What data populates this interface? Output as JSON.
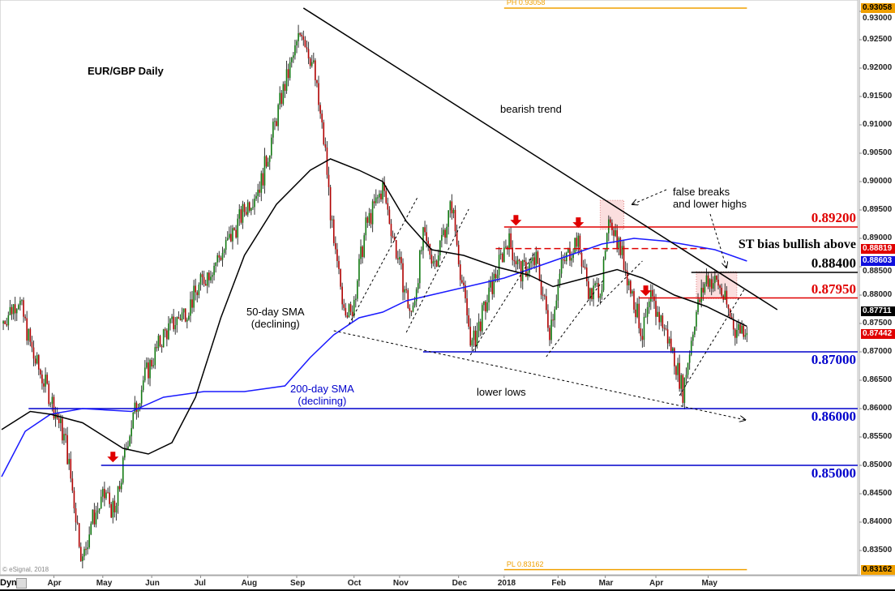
{
  "chart_data": {
    "type": "candlestick",
    "title": "EUR/GBP Daily",
    "ylim": [
      0.83,
      0.932
    ],
    "y_ticks": [
      "0.93000",
      "0.92500",
      "0.92000",
      "0.91500",
      "0.91000",
      "0.90500",
      "0.90000",
      "0.89500",
      "0.89000",
      "0.88500",
      "0.88000",
      "0.87500",
      "0.87000",
      "0.86500",
      "0.86000",
      "0.85500",
      "0.85000",
      "0.84500",
      "0.84000",
      "0.83500"
    ],
    "x_ticks": [
      {
        "label": "Apr",
        "day": 31
      },
      {
        "label": "May",
        "day": 60
      },
      {
        "label": "Jun",
        "day": 89
      },
      {
        "label": "Jul",
        "day": 118
      },
      {
        "label": "Aug",
        "day": 146
      },
      {
        "label": "Sep",
        "day": 175
      },
      {
        "label": "Oct",
        "day": 209
      },
      {
        "label": "Nov",
        "day": 236
      },
      {
        "label": "Dec",
        "day": 271
      },
      {
        "label": "2018",
        "day": 298
      },
      {
        "label": "Feb",
        "day": 330
      },
      {
        "label": "Mar",
        "day": 358
      },
      {
        "label": "Apr",
        "day": 388
      },
      {
        "label": "May",
        "day": 419
      }
    ],
    "x_corner_label": "Dyn",
    "close_keypoints": [
      [
        0,
        0.875
      ],
      [
        10,
        0.8795
      ],
      [
        19,
        0.869
      ],
      [
        29,
        0.862
      ],
      [
        38,
        0.854
      ],
      [
        48,
        0.833
      ],
      [
        53,
        0.84
      ],
      [
        62,
        0.845
      ],
      [
        67,
        0.841
      ],
      [
        75,
        0.855
      ],
      [
        84,
        0.865
      ],
      [
        96,
        0.873
      ],
      [
        111,
        0.878
      ],
      [
        120,
        0.883
      ],
      [
        132,
        0.888
      ],
      [
        144,
        0.895
      ],
      [
        154,
        0.9
      ],
      [
        166,
        0.915
      ],
      [
        178,
        0.927
      ],
      [
        185,
        0.92
      ],
      [
        192,
        0.905
      ],
      [
        197,
        0.888
      ],
      [
        202,
        0.88
      ],
      [
        207,
        0.876
      ],
      [
        216,
        0.892
      ],
      [
        226,
        0.899
      ],
      [
        236,
        0.885
      ],
      [
        243,
        0.876
      ],
      [
        250,
        0.89
      ],
      [
        257,
        0.886
      ],
      [
        267,
        0.896
      ],
      [
        274,
        0.88
      ],
      [
        279,
        0.871
      ],
      [
        288,
        0.879
      ],
      [
        300,
        0.89
      ],
      [
        308,
        0.884
      ],
      [
        317,
        0.886
      ],
      [
        325,
        0.874
      ],
      [
        332,
        0.885
      ],
      [
        341,
        0.89
      ],
      [
        349,
        0.88
      ],
      [
        356,
        0.882
      ],
      [
        361,
        0.894
      ],
      [
        368,
        0.887
      ],
      [
        375,
        0.879
      ],
      [
        380,
        0.873
      ],
      [
        385,
        0.879
      ],
      [
        392,
        0.875
      ],
      [
        399,
        0.869
      ],
      [
        404,
        0.863
      ],
      [
        411,
        0.876
      ],
      [
        418,
        0.883
      ],
      [
        425,
        0.882
      ],
      [
        435,
        0.874
      ],
      [
        442,
        0.8744
      ]
    ],
    "sma50": {
      "name": "50-day SMA",
      "points": [
        [
          0,
          0.8563
        ],
        [
          17,
          0.8595
        ],
        [
          29,
          0.859
        ],
        [
          48,
          0.8575
        ],
        [
          72,
          0.853
        ],
        [
          87,
          0.852
        ],
        [
          101,
          0.854
        ],
        [
          115,
          0.862
        ],
        [
          130,
          0.876
        ],
        [
          144,
          0.887
        ],
        [
          163,
          0.896
        ],
        [
          183,
          0.902
        ],
        [
          195,
          0.904
        ],
        [
          212,
          0.902
        ],
        [
          226,
          0.9
        ],
        [
          240,
          0.893
        ],
        [
          255,
          0.888
        ],
        [
          274,
          0.887
        ],
        [
          293,
          0.885
        ],
        [
          313,
          0.8835
        ],
        [
          327,
          0.8815
        ],
        [
          346,
          0.883
        ],
        [
          365,
          0.8845
        ],
        [
          380,
          0.883
        ],
        [
          399,
          0.88
        ],
        [
          418,
          0.878
        ],
        [
          442,
          0.8745
        ]
      ]
    },
    "sma200": {
      "name": "200-day SMA",
      "points": [
        [
          0,
          0.848
        ],
        [
          14,
          0.856
        ],
        [
          29,
          0.859
        ],
        [
          48,
          0.86
        ],
        [
          77,
          0.8595
        ],
        [
          96,
          0.862
        ],
        [
          120,
          0.863
        ],
        [
          144,
          0.863
        ],
        [
          168,
          0.864
        ],
        [
          183,
          0.869
        ],
        [
          197,
          0.873
        ],
        [
          212,
          0.876
        ],
        [
          226,
          0.877
        ],
        [
          240,
          0.879
        ],
        [
          269,
          0.881
        ],
        [
          298,
          0.883
        ],
        [
          327,
          0.886
        ],
        [
          356,
          0.889
        ],
        [
          375,
          0.89
        ],
        [
          394,
          0.8895
        ],
        [
          423,
          0.888
        ],
        [
          442,
          0.886
        ]
      ]
    },
    "levels": [
      {
        "value": 0.892,
        "label": "0.89200",
        "color": "#e00000",
        "from": 298,
        "style": "solid"
      },
      {
        "value": 0.8882,
        "label": "",
        "color": "#e00000",
        "from": 293,
        "to": 420,
        "style": "dashed"
      },
      {
        "value": 0.884,
        "label": "0.88400",
        "color": "#000000",
        "from": 409,
        "style": "solid"
      },
      {
        "value": 0.8795,
        "label": "0.87950",
        "color": "#e00000",
        "from": 378,
        "style": "solid"
      },
      {
        "value": 0.87,
        "label": "0.87000",
        "color": "#0000cc",
        "from": 250,
        "style": "solid"
      },
      {
        "value": 0.86,
        "label": "0.86000",
        "color": "#0000cc",
        "from": 16,
        "style": "solid"
      },
      {
        "value": 0.85,
        "label": "0.85000",
        "color": "#0000cc",
        "from": 59,
        "style": "solid"
      }
    ],
    "period_high": {
      "label": "PH 0.93058",
      "value": 0.93058,
      "from": 298,
      "to": 442
    },
    "period_low": {
      "label": "PL 0.83162",
      "value": 0.83162,
      "from": 298,
      "to": 442
    },
    "trendline": [
      [
        179,
        0.93058
      ],
      [
        460,
        0.87743
      ]
    ],
    "lower_lows_arrow": [
      [
        197,
        0.87371
      ],
      [
        441,
        0.858
      ]
    ],
    "channel_lines": [
      [
        [
          206,
          0.87486
        ],
        [
          247,
          0.89743
        ]
      ],
      [
        [
          240,
          0.87343
        ],
        [
          277,
          0.89514
        ]
      ],
      [
        [
          278,
          0.86943
        ],
        [
          316,
          0.88743
        ]
      ],
      [
        [
          323,
          0.86914
        ],
        [
          357,
          0.88271
        ]
      ],
      [
        [
          353,
          0.878
        ],
        [
          380,
          0.886
        ]
      ],
      [
        [
          402,
          0.86229
        ],
        [
          441,
          0.88129
        ]
      ]
    ],
    "red_arrows": [
      [
        66,
        0.8524
      ],
      [
        305,
        0.8941
      ],
      [
        342,
        0.8937
      ],
      [
        382,
        0.8817
      ]
    ],
    "shaded_boxes": [
      [
        355,
        369,
        0.8967,
        0.8916
      ],
      [
        412,
        436,
        0.8841,
        0.8794
      ]
    ],
    "annotations": {
      "title": "EUR/GBP Daily",
      "bearish": "bearish trend",
      "false_breaks_1": "false breaks",
      "false_breaks_2": "and lower highs",
      "sma50_1": "50-day SMA",
      "sma50_2": "(declining)",
      "sma200_1": "200-day SMA",
      "sma200_2": "(declining)",
      "lower_lows": "lower lows",
      "st_bias": "ST bias bullish above"
    },
    "price_tags": [
      {
        "label": "0.93058",
        "value": 0.93058,
        "bg": "#f0a000",
        "fg": "#000"
      },
      {
        "label": "0.88819",
        "value": 0.88819,
        "bg": "#e00000",
        "fg": "#fff"
      },
      {
        "label": "0.88603",
        "value": 0.88603,
        "bg": "#1010dd",
        "fg": "#fff"
      },
      {
        "label": "0.87711",
        "value": 0.87711,
        "bg": "#000000",
        "fg": "#fff"
      },
      {
        "label": "0.87442",
        "value": 0.87442,
        "bg": "#e00000",
        "fg": "#fff"
      },
      {
        "label": "0.83162",
        "value": 0.83162,
        "bg": "#f0a000",
        "fg": "#000"
      }
    ],
    "copyright": "© eSignal, 2018"
  }
}
